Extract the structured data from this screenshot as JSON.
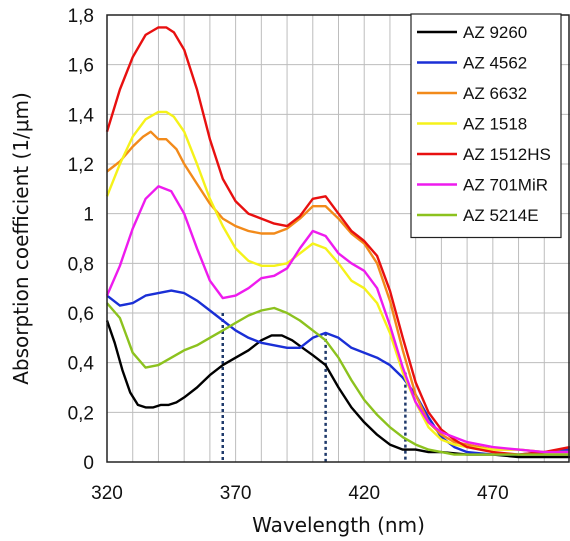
{
  "chart_data": {
    "type": "line",
    "title": "",
    "xlabel": "Wavelength (nm)",
    "ylabel": "Absorption coefficient (1/μm)",
    "xlim": [
      320,
      500
    ],
    "ylim": [
      0,
      1.8
    ],
    "x_ticks": [
      320,
      370,
      420,
      470
    ],
    "x_tick_labels": [
      "320",
      "370",
      "420",
      "470"
    ],
    "y_ticks": [
      0,
      0.2,
      0.4,
      0.6,
      0.8,
      1,
      1.2,
      1.4,
      1.6,
      1.8
    ],
    "y_tick_labels": [
      "0",
      "0,2",
      "0,4",
      "0,6",
      "0,8",
      "1",
      "1,2",
      "1,4",
      "1,6",
      "1,8"
    ],
    "grid": true,
    "legend_position": "top-right",
    "series": [
      {
        "name": "AZ 9260",
        "color": "#000000",
        "x": [
          320,
          323,
          326,
          329,
          332,
          335,
          338,
          341,
          344,
          347,
          350,
          355,
          360,
          365,
          370,
          375,
          380,
          384,
          388,
          392,
          396,
          400,
          405,
          410,
          415,
          420,
          425,
          430,
          435,
          440,
          445,
          450,
          460,
          470,
          480,
          490,
          500
        ],
        "y": [
          0.57,
          0.48,
          0.37,
          0.28,
          0.23,
          0.22,
          0.22,
          0.23,
          0.23,
          0.24,
          0.26,
          0.3,
          0.35,
          0.39,
          0.42,
          0.45,
          0.49,
          0.51,
          0.51,
          0.49,
          0.46,
          0.43,
          0.39,
          0.3,
          0.22,
          0.16,
          0.11,
          0.07,
          0.05,
          0.05,
          0.04,
          0.04,
          0.03,
          0.03,
          0.02,
          0.02,
          0.02
        ]
      },
      {
        "name": "AZ 4562",
        "color": "#1a2fd6",
        "x": [
          320,
          325,
          330,
          335,
          340,
          345,
          350,
          355,
          360,
          365,
          370,
          375,
          380,
          385,
          390,
          395,
          400,
          405,
          410,
          415,
          420,
          425,
          430,
          435,
          440,
          445,
          450,
          455,
          460,
          470,
          480,
          490,
          500
        ],
        "y": [
          0.67,
          0.63,
          0.64,
          0.67,
          0.68,
          0.69,
          0.68,
          0.65,
          0.61,
          0.57,
          0.53,
          0.5,
          0.48,
          0.47,
          0.46,
          0.46,
          0.5,
          0.52,
          0.5,
          0.46,
          0.44,
          0.42,
          0.39,
          0.34,
          0.27,
          0.18,
          0.1,
          0.06,
          0.04,
          0.03,
          0.03,
          0.04,
          0.05
        ]
      },
      {
        "name": "AZ 6632",
        "color": "#f28a1a",
        "x": [
          320,
          325,
          330,
          334,
          337,
          340,
          343,
          347,
          350,
          355,
          360,
          365,
          370,
          375,
          380,
          385,
          390,
          395,
          400,
          405,
          410,
          415,
          420,
          425,
          430,
          435,
          440,
          445,
          450,
          455,
          460,
          470,
          480,
          490,
          500
        ],
        "y": [
          1.17,
          1.21,
          1.27,
          1.31,
          1.33,
          1.3,
          1.3,
          1.26,
          1.2,
          1.12,
          1.04,
          0.98,
          0.95,
          0.93,
          0.92,
          0.92,
          0.94,
          0.98,
          1.03,
          1.03,
          0.98,
          0.92,
          0.88,
          0.8,
          0.65,
          0.45,
          0.27,
          0.16,
          0.11,
          0.08,
          0.07,
          0.05,
          0.05,
          0.04,
          0.04
        ]
      },
      {
        "name": "AZ 1518",
        "color": "#f5f21a",
        "x": [
          320,
          325,
          330,
          335,
          340,
          343,
          346,
          350,
          355,
          360,
          365,
          370,
          375,
          380,
          385,
          390,
          395,
          400,
          405,
          410,
          415,
          420,
          425,
          430,
          435,
          440,
          445,
          450,
          455,
          460,
          470,
          480,
          490,
          500
        ],
        "y": [
          1.07,
          1.2,
          1.31,
          1.38,
          1.41,
          1.41,
          1.39,
          1.33,
          1.2,
          1.06,
          0.95,
          0.86,
          0.81,
          0.79,
          0.79,
          0.8,
          0.84,
          0.88,
          0.86,
          0.8,
          0.73,
          0.7,
          0.64,
          0.52,
          0.36,
          0.24,
          0.14,
          0.09,
          0.07,
          0.06,
          0.05,
          0.05,
          0.04,
          0.04
        ]
      },
      {
        "name": "AZ 1512HS",
        "color": "#e81010",
        "x": [
          320,
          325,
          330,
          335,
          340,
          343,
          346,
          350,
          355,
          360,
          365,
          370,
          375,
          380,
          385,
          390,
          395,
          400,
          405,
          410,
          415,
          420,
          425,
          430,
          435,
          440,
          445,
          450,
          455,
          460,
          470,
          480,
          490,
          500
        ],
        "y": [
          1.33,
          1.5,
          1.63,
          1.72,
          1.75,
          1.75,
          1.73,
          1.66,
          1.5,
          1.3,
          1.14,
          1.05,
          1.0,
          0.98,
          0.96,
          0.95,
          0.99,
          1.06,
          1.07,
          1.0,
          0.93,
          0.89,
          0.83,
          0.69,
          0.5,
          0.32,
          0.2,
          0.13,
          0.09,
          0.06,
          0.04,
          0.03,
          0.04,
          0.06
        ]
      },
      {
        "name": "AZ 701MiR",
        "color": "#ee1bee",
        "x": [
          320,
          325,
          330,
          335,
          340,
          345,
          350,
          355,
          360,
          365,
          370,
          375,
          380,
          385,
          390,
          395,
          400,
          405,
          410,
          415,
          420,
          425,
          430,
          435,
          440,
          445,
          450,
          455,
          460,
          470,
          480,
          490,
          500
        ],
        "y": [
          0.67,
          0.79,
          0.94,
          1.06,
          1.11,
          1.09,
          1.0,
          0.86,
          0.73,
          0.66,
          0.67,
          0.7,
          0.74,
          0.75,
          0.78,
          0.86,
          0.93,
          0.91,
          0.84,
          0.8,
          0.77,
          0.7,
          0.55,
          0.38,
          0.24,
          0.16,
          0.12,
          0.1,
          0.08,
          0.06,
          0.05,
          0.04,
          0.04
        ]
      },
      {
        "name": "AZ 5214E",
        "color": "#8cc21e",
        "x": [
          320,
          325,
          330,
          335,
          340,
          345,
          350,
          355,
          360,
          365,
          370,
          375,
          380,
          385,
          390,
          395,
          400,
          405,
          410,
          415,
          420,
          425,
          430,
          435,
          440,
          445,
          450,
          455,
          460,
          470,
          480,
          490,
          500
        ],
        "y": [
          0.64,
          0.58,
          0.44,
          0.38,
          0.39,
          0.42,
          0.45,
          0.47,
          0.5,
          0.53,
          0.56,
          0.59,
          0.61,
          0.62,
          0.6,
          0.57,
          0.53,
          0.49,
          0.42,
          0.33,
          0.25,
          0.19,
          0.14,
          0.1,
          0.07,
          0.05,
          0.04,
          0.03,
          0.03,
          0.03,
          0.03,
          0.03,
          0.03
        ]
      }
    ],
    "annotations": {
      "dotted_markers": [
        {
          "x": 365,
          "y": 0.6
        },
        {
          "x": 405,
          "y": 0.52
        },
        {
          "x": 436,
          "y": 0.36
        }
      ],
      "marker_color": "#1f3a6b"
    }
  }
}
